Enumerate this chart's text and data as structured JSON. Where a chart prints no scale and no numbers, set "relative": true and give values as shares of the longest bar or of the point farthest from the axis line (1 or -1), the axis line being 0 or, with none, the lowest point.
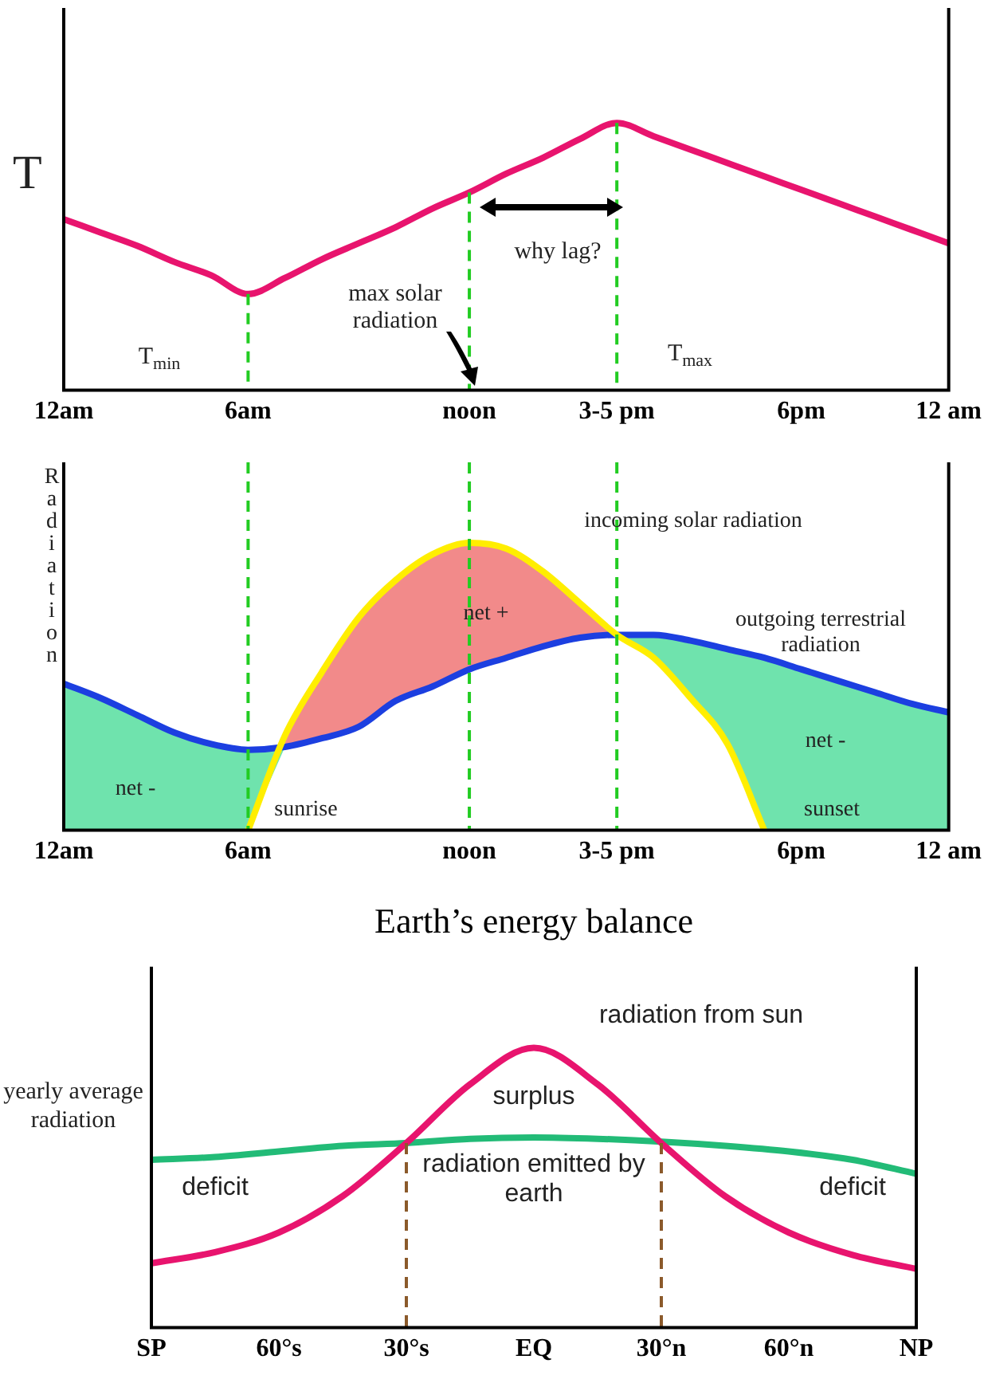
{
  "chart_data": [
    {
      "type": "line",
      "ylabel": "T",
      "relative": true,
      "tick_labels": "x",
      "grid": false,
      "legend": false,
      "marker": "none",
      "categories": [
        "12am",
        null,
        null,
        null,
        null,
        "6am",
        null,
        null,
        null,
        null,
        null,
        "noon",
        null,
        null,
        null,
        "3-5 pm",
        null,
        null,
        null,
        null,
        "6pm",
        null,
        null,
        null,
        "12 am"
      ],
      "series": [
        {
          "color": "#e8146e",
          "values": [
            0.64,
            0.59,
            0.54,
            0.48,
            0.43,
            0.36,
            0.42,
            0.49,
            0.55,
            0.61,
            0.68,
            0.74,
            0.81,
            0.87,
            0.94,
            1,
            0.95,
            0.9,
            0.85,
            0.8,
            0.75,
            0.7,
            0.65,
            0.6,
            0.55
          ]
        }
      ],
      "ref_lines": [
        {
          "axis": "x",
          "value": "6am",
          "color": "#22cc22",
          "line_style": "dashed"
        },
        {
          "axis": "x",
          "value": "noon",
          "color": "#22cc22",
          "line_style": "dashed"
        },
        {
          "axis": "x",
          "value": "3-5 pm",
          "color": "#22cc22",
          "line_style": "dashed"
        }
      ],
      "annotations": [
        "T$_{min}$",
        "T$_{max}$",
        "max solar radiation",
        "why lag?"
      ]
    },
    {
      "type": "line",
      "ylabel": "Radiation",
      "relative": true,
      "tick_labels": "x",
      "grid": false,
      "legend": false,
      "marker": "none",
      "categories": [
        "12am",
        null,
        null,
        null,
        null,
        "6am",
        null,
        null,
        null,
        null,
        null,
        "noon",
        null,
        null,
        null,
        "3-5 pm",
        null,
        null,
        null,
        null,
        "6pm",
        null,
        null,
        null,
        "12 am"
      ],
      "series": [
        {
          "color": "#ffee00",
          "values": [
            null,
            null,
            null,
            null,
            null,
            0,
            0.33,
            0.55,
            0.74,
            0.87,
            0.96,
            1,
            0.98,
            0.9,
            0.79,
            0.68,
            0.6,
            0.46,
            0.3,
            0,
            null,
            null,
            null,
            null,
            null
          ],
          "lower": [
            null,
            null,
            null,
            null,
            null,
            null,
            0.29,
            0.32,
            0.36,
            0.45,
            0.5,
            0.56,
            0.6,
            0.64,
            0.67,
            0.68,
            null,
            null,
            null,
            null,
            null,
            null,
            null,
            null,
            null
          ],
          "upper": [
            null,
            null,
            null,
            null,
            null,
            null,
            0.33,
            0.55,
            0.74,
            0.87,
            0.96,
            1,
            0.98,
            0.9,
            0.79,
            0.68,
            null,
            null,
            null,
            null,
            null,
            null,
            null,
            null,
            null
          ]
        },
        {
          "color": "#1c3fe0",
          "values": [
            0.51,
            0.46,
            0.4,
            0.34,
            0.3,
            0.28,
            0.29,
            0.32,
            0.36,
            0.45,
            0.5,
            0.56,
            0.6,
            0.64,
            0.67,
            0.68,
            0.68,
            0.66,
            0.63,
            0.6,
            0.56,
            0.52,
            0.48,
            0.44,
            0.41
          ],
          "lower": [
            0,
            0,
            0,
            0,
            0,
            0,
            0.29,
            null,
            null,
            null,
            null,
            null,
            null,
            null,
            null,
            0.68,
            0.6,
            0.46,
            0.3,
            0,
            0,
            0,
            0,
            0,
            0
          ],
          "upper": [
            0.51,
            0.46,
            0.4,
            0.34,
            0.3,
            0.28,
            0.29,
            null,
            null,
            null,
            null,
            null,
            null,
            null,
            null,
            0.68,
            0.68,
            0.66,
            0.63,
            0.6,
            0.56,
            0.52,
            0.48,
            0.44,
            0.41
          ]
        }
      ],
      "ref_lines": [
        {
          "axis": "x",
          "value": "6am",
          "color": "#22cc22",
          "line_style": "dashed"
        },
        {
          "axis": "x",
          "value": "noon",
          "color": "#22cc22",
          "line_style": "dashed"
        },
        {
          "axis": "x",
          "value": "3-5 pm",
          "color": "#22cc22",
          "line_style": "dashed"
        }
      ],
      "annotations": [
        "incoming solar radiation",
        "outgoing terrestrial radiation",
        "net +",
        "net -",
        "net -",
        "sunrise",
        "sunset"
      ]
    },
    {
      "type": "line",
      "title": "Earth’s energy balance",
      "ylabel": "yearly average radiation",
      "relative": true,
      "tick_labels": "x",
      "grid": false,
      "legend": false,
      "marker": "none",
      "categories": [
        "SP",
        null,
        "60°s",
        null,
        "30°s",
        null,
        "EQ",
        null,
        "30°n",
        null,
        "60°n",
        null,
        "NP"
      ],
      "series": [
        {
          "color": "#e8146e",
          "values": [
            0.23,
            0.27,
            0.34,
            0.47,
            0.66,
            0.87,
            1,
            0.87,
            0.66,
            0.47,
            0.34,
            0.26,
            0.21
          ]
        },
        {
          "color": "#22bb77",
          "values": [
            0.6,
            0.61,
            0.63,
            0.65,
            0.66,
            0.675,
            0.68,
            0.675,
            0.665,
            0.65,
            0.63,
            0.6,
            0.55
          ]
        }
      ],
      "ref_lines": [
        {
          "axis": "x",
          "value": "30°s",
          "color": "#8b5a2b",
          "line_style": "dashed"
        },
        {
          "axis": "x",
          "value": "30°n",
          "color": "#8b5a2b",
          "line_style": "dashed"
        }
      ],
      "annotations": [
        "radiation from sun",
        "surplus",
        "radiation emitted by earth",
        "deficit",
        "deficit"
      ]
    }
  ]
}
